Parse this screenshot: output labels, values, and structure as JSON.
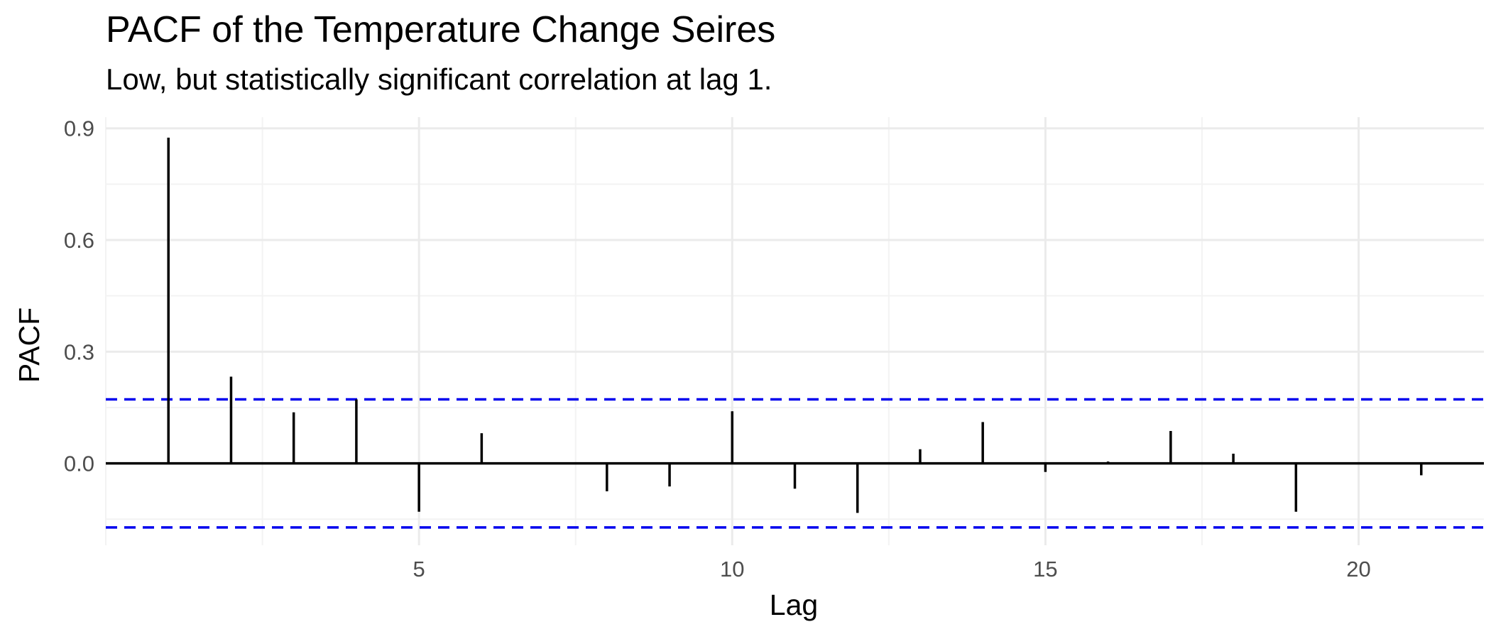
{
  "chart_data": {
    "type": "bar",
    "title": "PACF of the Temperature Change Seires",
    "subtitle": "Low, but statistically significant correlation at lag 1.",
    "xlabel": "Lag",
    "ylabel": "PACF",
    "x": [
      1,
      2,
      3,
      4,
      5,
      6,
      7,
      8,
      9,
      10,
      11,
      12,
      13,
      14,
      15,
      16,
      17,
      18,
      19,
      20,
      21
    ],
    "values": [
      0.875,
      0.233,
      0.137,
      0.172,
      -0.13,
      0.081,
      0.0,
      -0.075,
      -0.062,
      0.14,
      -0.068,
      -0.133,
      0.038,
      0.111,
      -0.023,
      0.005,
      0.087,
      0.026,
      -0.13,
      0.0,
      -0.032
    ],
    "confidence_bound": 0.172,
    "xlim": [
      0,
      22
    ],
    "ylim": [
      -0.22,
      0.93
    ],
    "x_ticks": [
      5,
      10,
      15,
      20
    ],
    "y_ticks": [
      0.0,
      0.3,
      0.6,
      0.9
    ],
    "x_tick_labels": [
      "5",
      "10",
      "15",
      "20"
    ],
    "y_tick_labels": [
      "0.0",
      "0.3",
      "0.6",
      "0.9"
    ],
    "grid": true,
    "colors": {
      "bars": "#000000",
      "confidence_lines": "#0000ee",
      "grid_major": "#ebebeb",
      "grid_minor": "#f3f3f3",
      "zero_line": "#000000"
    }
  }
}
